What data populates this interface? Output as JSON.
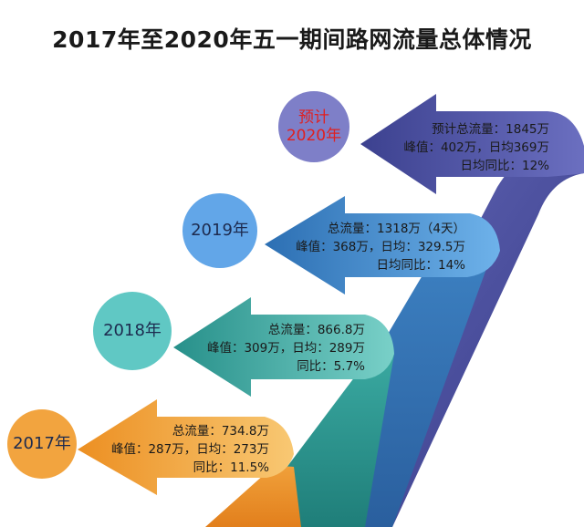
{
  "title": "2017年至2020年五一期间路网流量总体情况",
  "colors": {
    "orange": "#f2a23c",
    "teal": "#3aa7a0",
    "blue": "#3f86c6",
    "navy": "#4a4f9e",
    "circle_2020": "#7e7fc8",
    "circle_2019": "#62a6e8",
    "circle_2018": "#60c8c4",
    "circle_2017": "#f2a43f",
    "highlight_text": "#e02020"
  },
  "stages": [
    {
      "id": "2017",
      "circle_label": "2017年",
      "lines": [
        "总流量：734.8万",
        "峰值：287万，日均：273万",
        "同比：11.5%"
      ]
    },
    {
      "id": "2018",
      "circle_label": "2018年",
      "lines": [
        "总流量：866.8万",
        "峰值：309万，日均：289万",
        "同比：5.7%"
      ]
    },
    {
      "id": "2019",
      "circle_label": "2019年",
      "lines": [
        "总流量：1318万（4天）",
        "峰值：368万，日均：329.5万",
        "日均同比：14%"
      ]
    },
    {
      "id": "2020",
      "circle_label_line1": "预计",
      "circle_label_line2": "2020年",
      "lines": [
        "预计总流量：1845万",
        "峰值：402万，日均369万",
        "日均同比：12%"
      ]
    }
  ]
}
